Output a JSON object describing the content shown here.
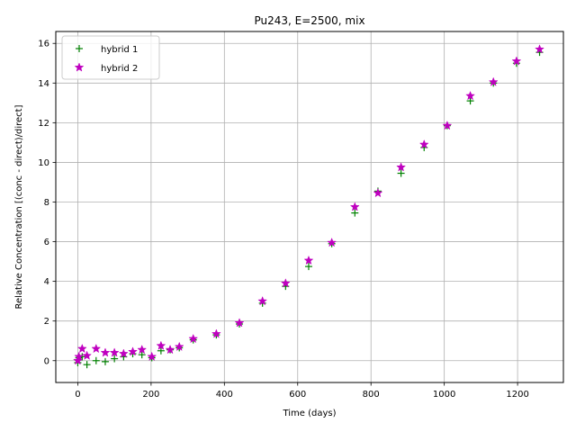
{
  "chart_data": {
    "type": "scatter",
    "title": "Pu243, E=2500, mix",
    "xlabel": "Time (days)",
    "ylabel": "Relative Concentration [(conc - direct)/direct]",
    "xlim": [
      -60,
      1325
    ],
    "ylim": [
      -1.1,
      16.6
    ],
    "xticks": [
      0,
      200,
      400,
      600,
      800,
      1000,
      1200
    ],
    "yticks": [
      0,
      2,
      4,
      6,
      8,
      10,
      12,
      14,
      16
    ],
    "grid": true,
    "legend_position": "upper-left",
    "series": [
      {
        "name": "hybrid 1",
        "marker": "plus",
        "color": "#008000",
        "points": [
          [
            0,
            -0.1
          ],
          [
            3,
            0.15
          ],
          [
            12,
            0.2
          ],
          [
            25,
            -0.2
          ],
          [
            50,
            0.0
          ],
          [
            75,
            -0.05
          ],
          [
            100,
            0.1
          ],
          [
            125,
            0.2
          ],
          [
            150,
            0.35
          ],
          [
            175,
            0.3
          ],
          [
            202,
            0.15
          ],
          [
            227,
            0.5
          ],
          [
            252,
            0.55
          ],
          [
            277,
            0.65
          ],
          [
            315,
            1.05
          ],
          [
            378,
            1.3
          ],
          [
            441,
            1.85
          ],
          [
            504,
            2.9
          ],
          [
            567,
            3.75
          ],
          [
            630,
            4.75
          ],
          [
            693,
            5.9
          ],
          [
            756,
            7.45
          ],
          [
            819,
            8.55
          ],
          [
            882,
            9.45
          ],
          [
            945,
            10.75
          ],
          [
            1008,
            11.85
          ],
          [
            1071,
            13.1
          ],
          [
            1134,
            14.0
          ],
          [
            1197,
            15.0
          ],
          [
            1260,
            15.55
          ]
        ]
      },
      {
        "name": "hybrid 2",
        "marker": "star",
        "color": "#bf00bf",
        "points": [
          [
            0,
            0.0
          ],
          [
            3,
            0.2
          ],
          [
            12,
            0.6
          ],
          [
            25,
            0.25
          ],
          [
            50,
            0.6
          ],
          [
            75,
            0.4
          ],
          [
            100,
            0.4
          ],
          [
            125,
            0.35
          ],
          [
            150,
            0.45
          ],
          [
            175,
            0.55
          ],
          [
            202,
            0.2
          ],
          [
            227,
            0.75
          ],
          [
            252,
            0.55
          ],
          [
            277,
            0.7
          ],
          [
            315,
            1.1
          ],
          [
            378,
            1.35
          ],
          [
            441,
            1.9
          ],
          [
            504,
            3.0
          ],
          [
            567,
            3.9
          ],
          [
            630,
            5.05
          ],
          [
            693,
            5.95
          ],
          [
            756,
            7.75
          ],
          [
            819,
            8.45
          ],
          [
            882,
            9.75
          ],
          [
            945,
            10.9
          ],
          [
            1008,
            11.85
          ],
          [
            1071,
            13.35
          ],
          [
            1134,
            14.05
          ],
          [
            1197,
            15.1
          ],
          [
            1260,
            15.7
          ]
        ]
      }
    ]
  }
}
